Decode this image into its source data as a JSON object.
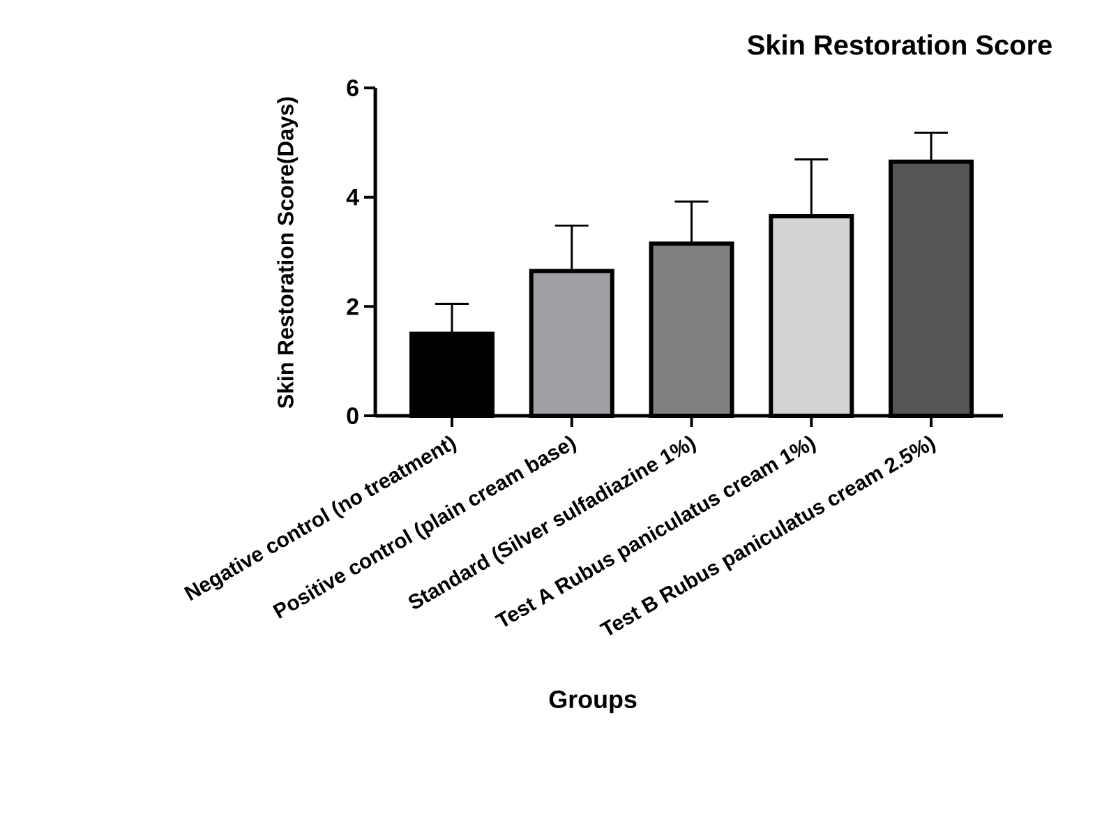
{
  "chart_data": {
    "type": "bar",
    "title": "Skin Restoration Score",
    "xlabel": "Groups",
    "ylabel": "Skin Restoration Score(Days)",
    "categories": [
      "Negative control (no treatment)",
      "Positive control (plain cream base)",
      "Standard (Silver sulfadiazine 1%)",
      "Test A Rubus paniculatus cream 1%)",
      "Test B Rubus paniculatus cream 2.5%)"
    ],
    "values": [
      1.5,
      2.65,
      3.15,
      3.65,
      4.65
    ],
    "errors": [
      [
        1.5,
        2.05
      ],
      [
        2.65,
        3.48
      ],
      [
        3.15,
        3.92
      ],
      [
        3.65,
        4.69
      ],
      [
        4.65,
        5.18
      ]
    ],
    "colors": [
      "#000000",
      "#a0a0a4",
      "#808080",
      "#d3d3d3",
      "#555555"
    ],
    "ylim": [
      0,
      6
    ],
    "yticks": [
      0,
      2,
      4,
      6
    ],
    "grid": false
  }
}
